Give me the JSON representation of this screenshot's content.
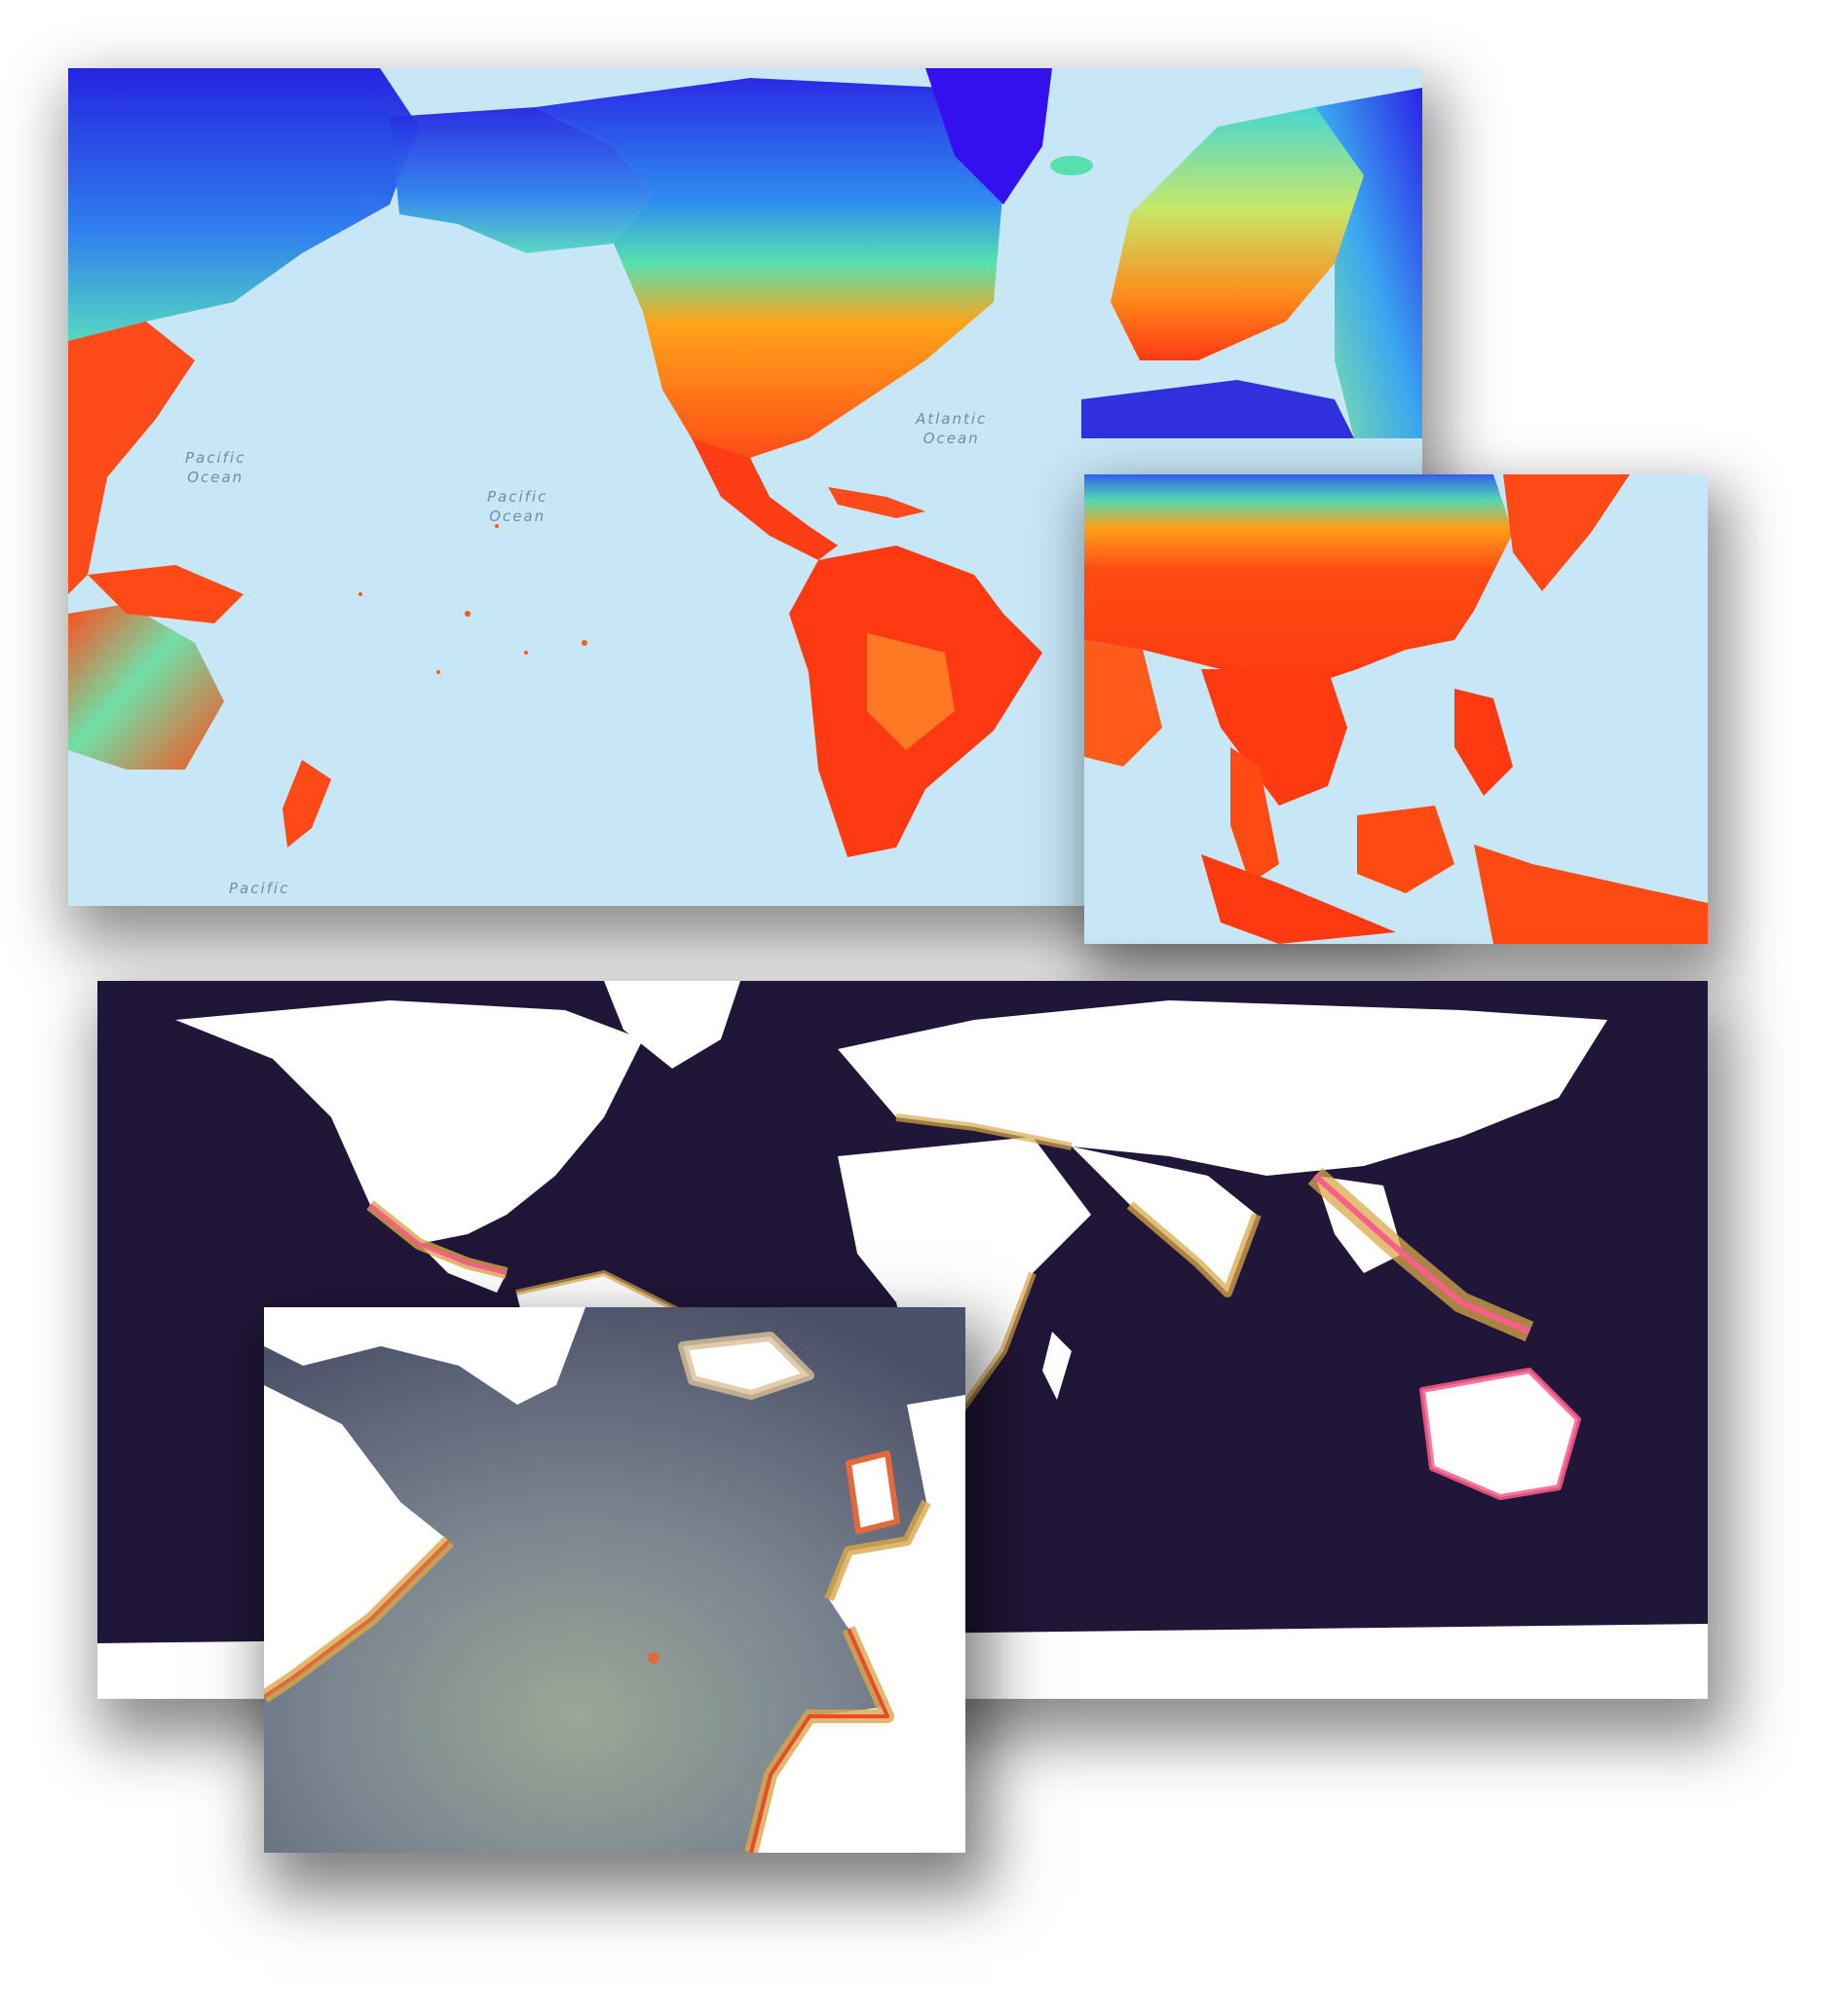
{
  "panels": {
    "top_map": {
      "labels": [
        {
          "line1": "Pacific",
          "line2": "Ocean"
        },
        {
          "line1": "Pacific",
          "line2": "Ocean"
        },
        {
          "line1": "Atlantic",
          "line2": "Ocean"
        },
        {
          "line1": "Pacific",
          "line2": ""
        }
      ]
    },
    "asia_map": {},
    "bottom_map": {},
    "atlantic_map": {}
  },
  "colors": {
    "ocean_light": "#c7e7f7",
    "land_high": "#ff3d1a",
    "land_mid": "#ffb21a",
    "land_cool": "#55e0a0",
    "land_cold": "#2240e0",
    "dark_ocean": "#201638",
    "coast_pink": "#ff5d8a",
    "coast_gold": "#d9a84a",
    "atlantic_deep": "#4a5068",
    "atlantic_shallow": "#9aa895"
  }
}
